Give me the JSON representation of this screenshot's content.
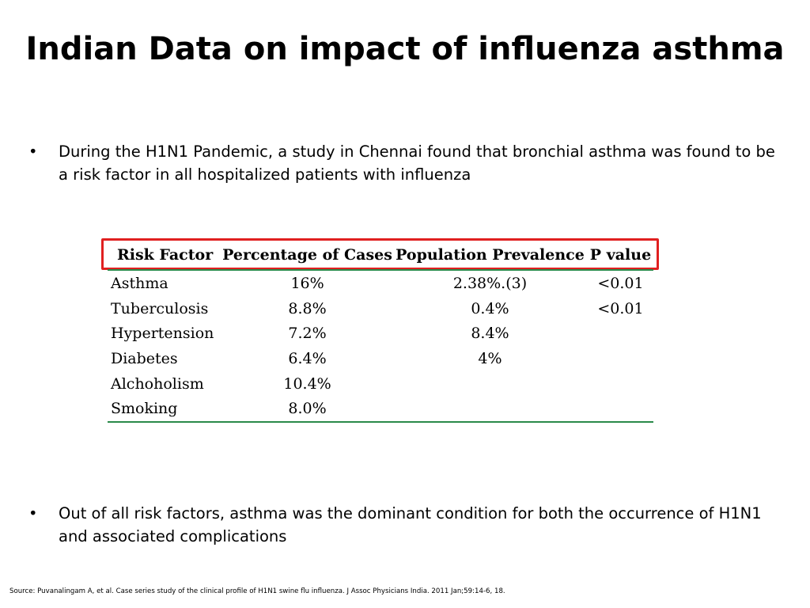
{
  "slide": {
    "title": "Indian Data on impact of influenza asthma",
    "bullets": [
      "During the H1N1 Pandemic, a study in Chennai found that bronchial asthma was found to be a risk factor in all hospitalized patients with influenza",
      "Out of all risk factors, asthma was the dominant condition for both the occurrence of H1N1 and associated complications"
    ],
    "bullet_symbol": "•",
    "source": "Source: Puvanalingam A, et al. Case series study of the clinical profile of H1N1 swine flu influenza. J Assoc Physicians India. 2011 Jan;59:14-6, 18."
  },
  "table": {
    "headers": [
      "Risk Factor",
      "Percentage of Cases",
      "Population Prevalence",
      "P value"
    ],
    "rows": [
      [
        "Asthma",
        "16%",
        "2.38%.(3)",
        "<0.01"
      ],
      [
        "Tuberculosis",
        "8.8%",
        "0.4%",
        "<0.01"
      ],
      [
        "Hypertension",
        "7.2%",
        "8.4%",
        ""
      ],
      [
        "Diabetes",
        "6.4%",
        "4%",
        ""
      ],
      [
        "Alchoholism",
        "10.4%",
        "",
        ""
      ],
      [
        "Smoking",
        "8.0%",
        "",
        ""
      ]
    ],
    "header_highlight_color": "#e02020",
    "rule_color": "#2a8a4a"
  }
}
